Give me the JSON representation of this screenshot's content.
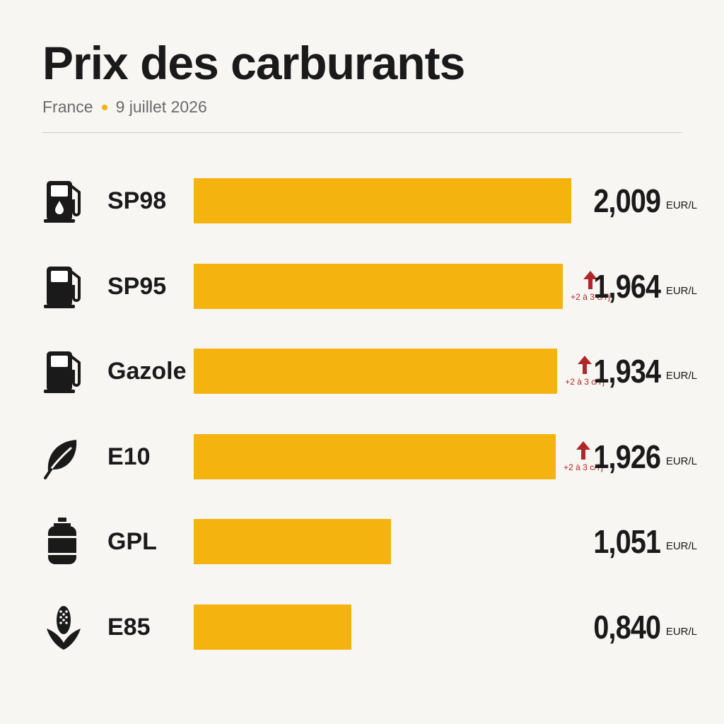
{
  "header": {
    "title": "Prix des carburants",
    "country": "France",
    "date": "9 juillet 2026"
  },
  "colors": {
    "bar": "#f5b30f",
    "trend_up": "#b1262b",
    "text": "#1a1a1a",
    "background": "#f8f6f2"
  },
  "chart_data": {
    "type": "bar",
    "orientation": "horizontal",
    "title": "Prix des carburants",
    "subtitle": "France • 9 juillet 2026",
    "unit": "EUR/L",
    "xlim": [
      0,
      2.1
    ],
    "grid": false,
    "categories": [
      "SP98",
      "SP95",
      "Gazole",
      "E10",
      "GPL",
      "E85"
    ],
    "values": [
      2.009,
      1.964,
      1.934,
      1.926,
      1.051,
      0.84
    ],
    "value_labels": [
      "2,009",
      "1,964",
      "1,934",
      "1,926",
      "1,051",
      "0,840"
    ],
    "icons": [
      "fuel-pump-drop-icon",
      "fuel-pump-icon",
      "fuel-pump-icon",
      "leaf-icon",
      "gas-cylinder-icon",
      "corn-icon"
    ],
    "annotations": [
      null,
      {
        "direction": "up",
        "text": "+2 à 3 c/7j"
      },
      {
        "direction": "up",
        "text": "+2 à 3 c/7j"
      },
      {
        "direction": "up",
        "text": "+2 à 3 c/7j"
      },
      null,
      null
    ]
  }
}
